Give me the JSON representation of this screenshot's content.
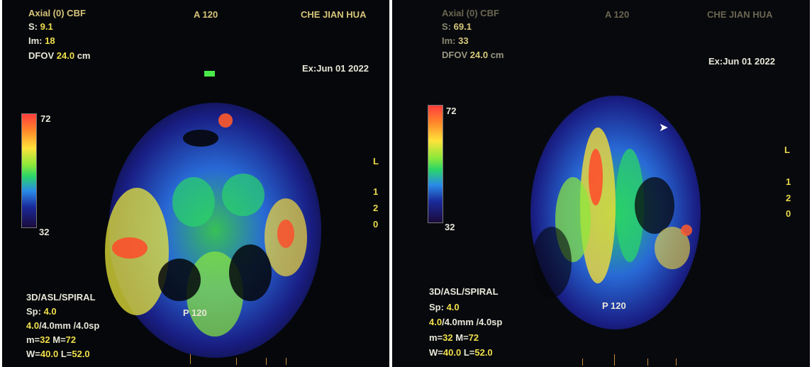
{
  "left": {
    "series_line": {
      "a": "Axial (0) CBF"
    },
    "slice_pos": {
      "label": "S:",
      "value": "9.1"
    },
    "image_num": {
      "label": "Im:",
      "value": "18"
    },
    "dfov": {
      "label": "DFOV",
      "value": "24.0",
      "unit": "cm"
    },
    "anterior": "A 120",
    "patient": "CHE JIAN HUA",
    "exam_date": "Ex:Jun 01 2022",
    "scale_max": "72",
    "scale_min": "32",
    "side_labels": [
      "L",
      "1",
      "2",
      "0"
    ],
    "sequence": "3D/ASL/SPIRAL",
    "spacing": {
      "label": "Sp:",
      "value": "4.0"
    },
    "thickness": {
      "value": "4.0",
      "rest": "/4.0mm /4.0sp"
    },
    "range": {
      "m_label": "m=",
      "m_value": "32",
      "M_label": "M=",
      "M_value": "72"
    },
    "window": {
      "w_label": "W=",
      "w_value": "40.0",
      "l_label": "L=",
      "l_value": "52.0"
    },
    "posterior": "P 120"
  },
  "right": {
    "series_line": {
      "a": "Axial (0) CBF"
    },
    "slice_pos": {
      "label": "S:",
      "value": "69.1"
    },
    "image_num": {
      "label": "Im:",
      "value": "33"
    },
    "dfov": {
      "label": "DFOV",
      "value": "24.0",
      "unit": "cm"
    },
    "anterior": "A 120",
    "patient": "CHE JIAN HUA",
    "exam_date": "Ex:Jun 01 2022",
    "scale_max": "72",
    "scale_min": "32",
    "side_labels": [
      "L",
      "1",
      "2",
      "0"
    ],
    "sequence": "3D/ASL/SPIRAL",
    "spacing": {
      "label": "Sp:",
      "value": "4.0"
    },
    "thickness": {
      "value": "4.0",
      "rest": "/4.0mm /4.0sp"
    },
    "range": {
      "m_label": "m=",
      "m_value": "32",
      "M_label": "M=",
      "M_value": "72"
    },
    "window": {
      "w_label": "W=",
      "w_value": "40.0",
      "l_label": "L=",
      "l_value": "52.0"
    },
    "posterior": "P 120"
  },
  "colors": {
    "background": "#05070a",
    "overlay_text": "#e8e6d8",
    "overlay_value": "#f1df4c",
    "header_gold": "#d6c37a"
  }
}
